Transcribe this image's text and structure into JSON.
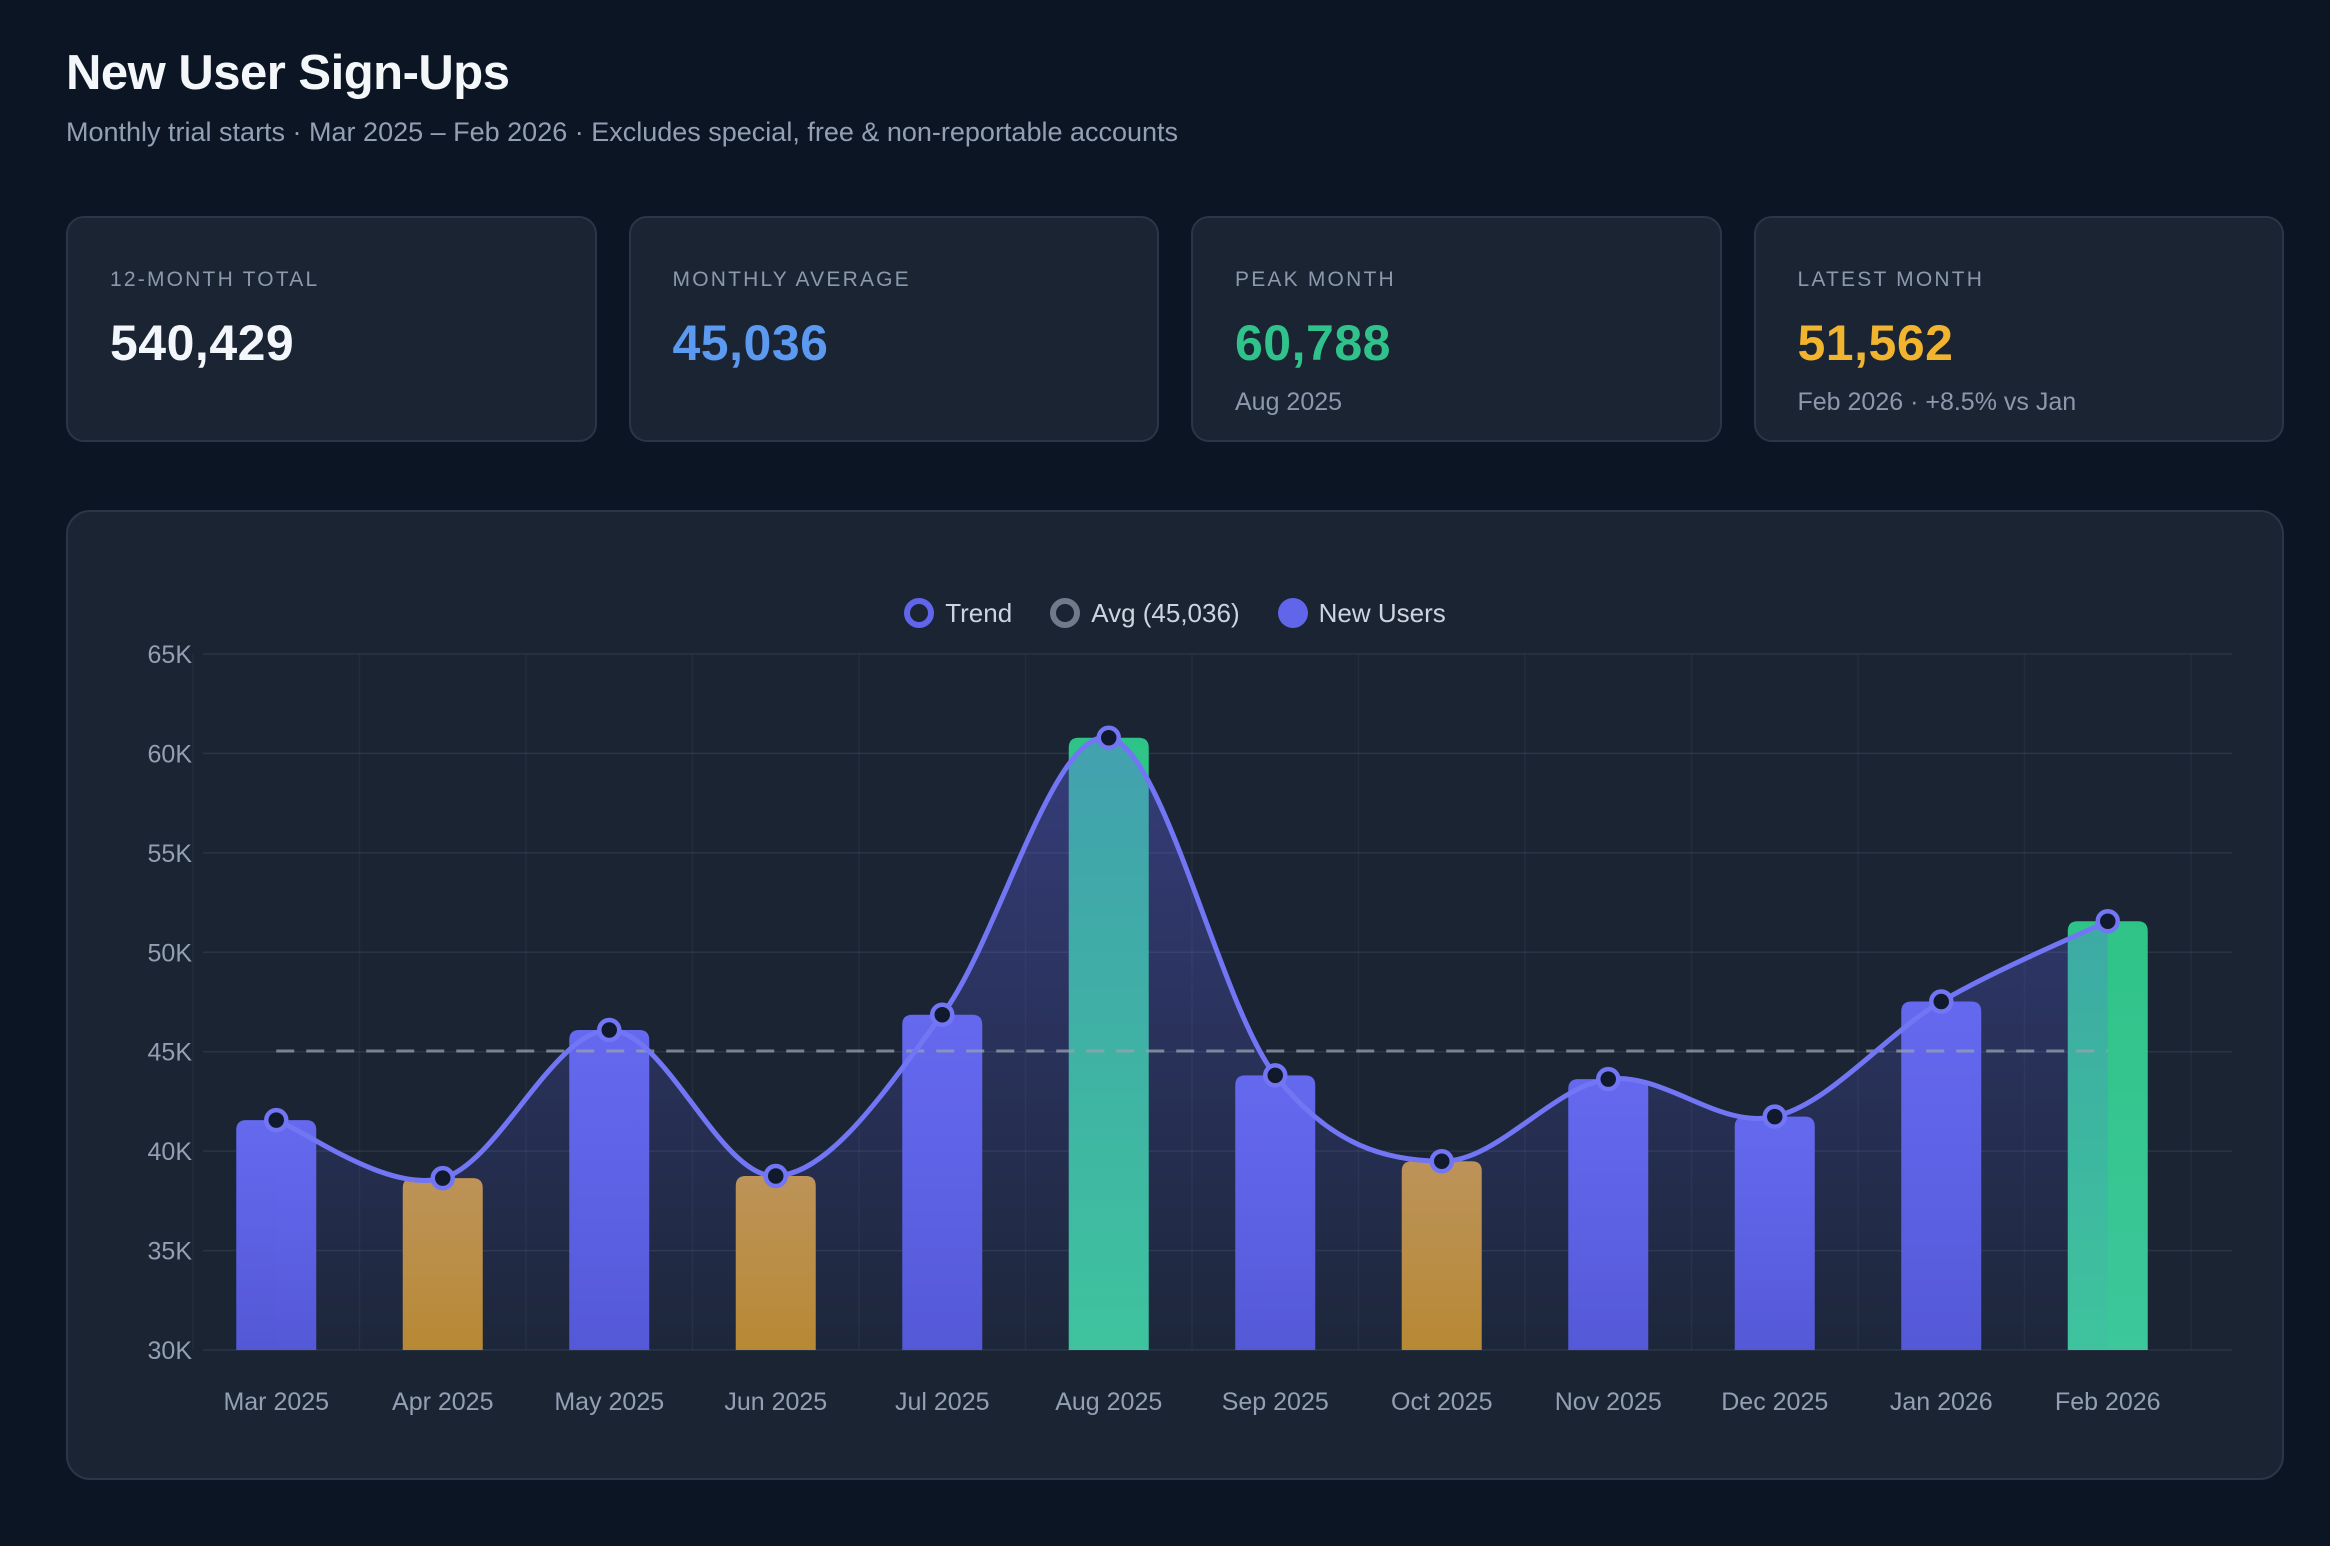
{
  "page": {
    "title": "New User Sign-Ups",
    "subtitle": "Monthly trial starts · Mar 2025 – Feb 2026 · Excludes special, free & non-reportable accounts"
  },
  "stats": [
    {
      "label": "12-MONTH TOTAL",
      "value": "540,429",
      "sub": "",
      "value_color": "#f3f6fa"
    },
    {
      "label": "MONTHLY AVERAGE",
      "value": "45,036",
      "sub": "",
      "value_color": "#5c99f0"
    },
    {
      "label": "PEAK MONTH",
      "value": "60,788",
      "sub": "Aug 2025",
      "value_color": "#2fc38b"
    },
    {
      "label": "LATEST MONTH",
      "value": "51,562",
      "sub": "Feb 2026 · +8.5% vs Jan",
      "value_color": "#f1b42e"
    }
  ],
  "chart": {
    "legend": [
      {
        "label": "Trend",
        "style": "ring",
        "color": "#6065ec"
      },
      {
        "label": "Avg (45,036)",
        "style": "ring",
        "color": "#6f7a8b"
      },
      {
        "label": "New Users",
        "style": "dot",
        "color": "#6165ea"
      }
    ]
  },
  "chart_data": {
    "type": "bar",
    "title": "New User Sign-Ups by Month",
    "xlabel": "",
    "ylabel": "",
    "categories": [
      "Mar 2025",
      "Apr 2025",
      "May 2025",
      "Jun 2025",
      "Jul 2025",
      "Aug 2025",
      "Sep 2025",
      "Oct 2025",
      "Nov 2025",
      "Dec 2025",
      "Jan 2026",
      "Feb 2026"
    ],
    "series": [
      {
        "name": "New Users",
        "type": "bar",
        "values": [
          41560,
          38640,
          46090,
          38750,
          46860,
          60788,
          43810,
          39490,
          43620,
          41736,
          47523,
          51562
        ]
      },
      {
        "name": "Trend",
        "type": "line",
        "values": [
          41560,
          38640,
          46090,
          38750,
          46860,
          60788,
          43810,
          39490,
          43620,
          41736,
          47523,
          51562
        ]
      }
    ],
    "bar_color_keys": [
      "indigo",
      "gold",
      "indigo",
      "gold",
      "indigo",
      "green",
      "indigo",
      "gold",
      "indigo",
      "indigo",
      "indigo",
      "green"
    ],
    "palette": {
      "indigo": [
        "#6569ee",
        "#5358d6"
      ],
      "gold": [
        "#cb9a40",
        "#ba8a2c"
      ],
      "green": [
        "#2fc487",
        "#3dc79b"
      ]
    },
    "line_color": "#7276f4",
    "marker_fill": "#101a2c",
    "area_color": "#6366f1",
    "avg_line": {
      "value": 45036,
      "label": "Avg (45,036)",
      "color": "#97a2b0"
    },
    "ylim": [
      30000,
      65000
    ],
    "ytick_step": 5000,
    "ytick_labels": [
      "30K",
      "35K",
      "40K",
      "45K",
      "50K",
      "55K",
      "60K",
      "65K"
    ],
    "grid": true,
    "legend_position": "top-center"
  }
}
